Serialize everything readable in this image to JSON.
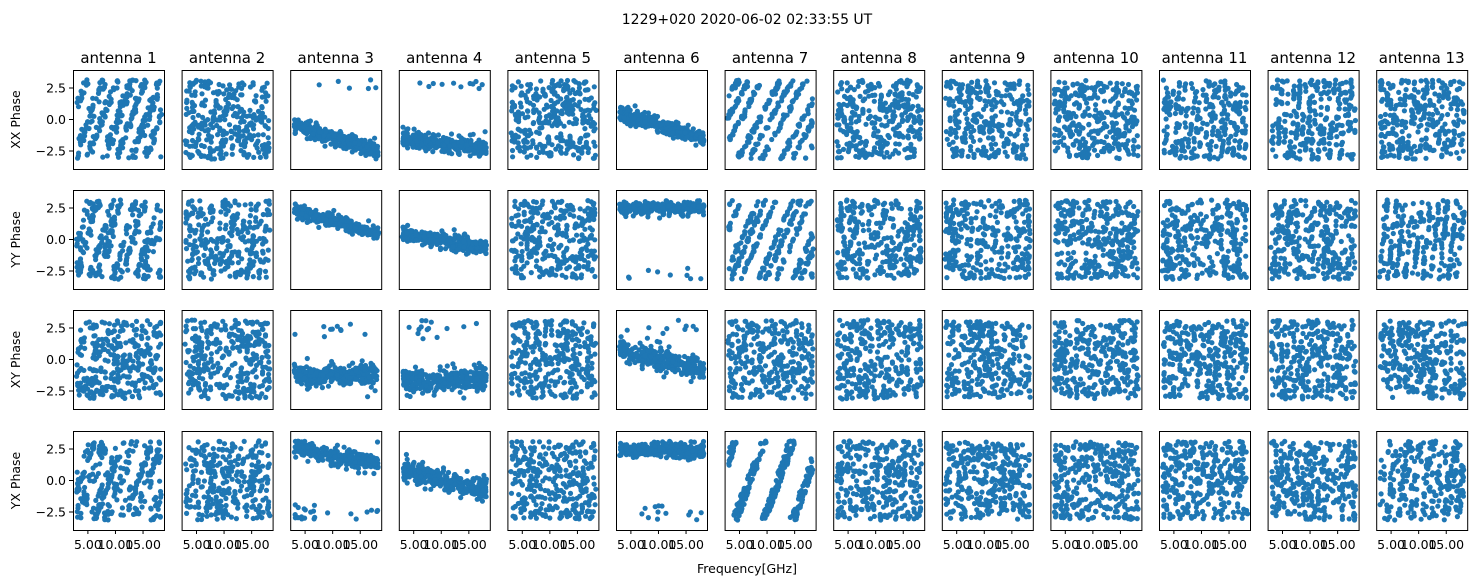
{
  "chart_data": {
    "type": "scatter",
    "title": "1229+020 2020-06-02 02:33:55 UT",
    "xlabel": "Frequency[GHz]",
    "xlim": [
      2.3,
      18.8
    ],
    "ylim": [
      -3.93,
      3.93
    ],
    "xticks": [
      {
        "v": 5,
        "label": "5.00"
      },
      {
        "v": 10,
        "label": "10.00"
      },
      {
        "v": 15,
        "label": "15.00"
      }
    ],
    "yticks": [
      {
        "v": 2.5,
        "label": "2.5"
      },
      {
        "v": 0,
        "label": "0.0"
      },
      {
        "v": -2.5,
        "label": "−2.5"
      }
    ],
    "grid": false,
    "marker_color": "#1f77b4",
    "columns": [
      "antenna 1",
      "antenna 2",
      "antenna 3",
      "antenna 4",
      "antenna 5",
      "antenna 6",
      "antenna 7",
      "antenna 8",
      "antenna 9",
      "antenna 10",
      "antenna 11",
      "antenna 12",
      "antenna 13"
    ],
    "rows": [
      {
        "ylabel": "XX Phase",
        "panels": [
          {
            "mode": "wrap",
            "slope": 1.2,
            "lines": 8
          },
          {
            "mode": "wrap",
            "slope": 3,
            "lines": 10
          },
          {
            "mode": "linear",
            "a": -0.3,
            "b": -0.14,
            "noise": 0.3,
            "outlier": 2.8
          },
          {
            "mode": "linear",
            "a": -1.5,
            "b": -0.05,
            "noise": 0.35,
            "outlier": 2.8
          },
          {
            "mode": "random"
          },
          {
            "mode": "linear",
            "a": 0.6,
            "b": -0.13,
            "noise": 0.3
          },
          {
            "mode": "wrap",
            "slope": 0.8,
            "lines": 3
          },
          {
            "mode": "wrap",
            "slope": 5,
            "lines": 12
          },
          {
            "mode": "wrap",
            "slope": 4,
            "lines": 10
          },
          {
            "mode": "random"
          },
          {
            "mode": "wrap",
            "slope": 3,
            "lines": 9
          },
          {
            "mode": "wrap",
            "slope": 6,
            "lines": 12
          },
          {
            "mode": "wrap",
            "slope": 4,
            "lines": 10
          }
        ]
      },
      {
        "ylabel": "YY Phase",
        "panels": [
          {
            "mode": "wrap",
            "slope": 1.5,
            "lines": 8
          },
          {
            "mode": "wrap",
            "slope": 3,
            "lines": 10
          },
          {
            "mode": "linear",
            "a": 2.4,
            "b": -0.12,
            "noise": 0.25
          },
          {
            "mode": "linear",
            "a": 0.5,
            "b": -0.07,
            "noise": 0.3
          },
          {
            "mode": "random"
          },
          {
            "mode": "linear",
            "a": 2.5,
            "b": 0,
            "noise": 0.25,
            "outlier": -3.0
          },
          {
            "mode": "wrap",
            "slope": 1,
            "lines": 3
          },
          {
            "mode": "wrap",
            "slope": -5,
            "lines": 12
          },
          {
            "mode": "wrap",
            "slope": 3,
            "lines": 10
          },
          {
            "mode": "random"
          },
          {
            "mode": "wrap",
            "slope": -2.5,
            "lines": 9
          },
          {
            "mode": "wrap",
            "slope": -7,
            "lines": 12
          },
          {
            "mode": "wrap",
            "slope": 4,
            "lines": 10
          }
        ]
      },
      {
        "ylabel": "XY Phase",
        "panels": [
          {
            "mode": "random"
          },
          {
            "mode": "wrap",
            "slope": 5,
            "lines": 12
          },
          {
            "mode": "linear",
            "a": -1.2,
            "b": 0,
            "noise": 0.4,
            "outlier": 2.5
          },
          {
            "mode": "linear",
            "a": -1.8,
            "b": 0.02,
            "noise": 0.5,
            "outlier": 2.5
          },
          {
            "mode": "random"
          },
          {
            "mode": "linear",
            "a": 0.8,
            "b": -0.1,
            "noise": 0.45,
            "outlier": 2.5
          },
          {
            "mode": "random"
          },
          {
            "mode": "wrap",
            "slope": -5,
            "lines": 12
          },
          {
            "mode": "random"
          },
          {
            "mode": "random"
          },
          {
            "mode": "random"
          },
          {
            "mode": "wrap",
            "slope": -6,
            "lines": 12
          },
          {
            "mode": "random"
          }
        ]
      },
      {
        "ylabel": "YX Phase",
        "panels": [
          {
            "mode": "wrap",
            "slope": 1.2,
            "lines": 8
          },
          {
            "mode": "wrap",
            "slope": 4,
            "lines": 10
          },
          {
            "mode": "linear",
            "a": 2.7,
            "b": -0.09,
            "noise": 0.35,
            "outlier": -2.5
          },
          {
            "mode": "linear",
            "a": 0.9,
            "b": -0.11,
            "noise": 0.4
          },
          {
            "mode": "random"
          },
          {
            "mode": "linear",
            "a": 2.4,
            "b": 0,
            "noise": 0.3,
            "outlier": -2.5
          },
          {
            "mode": "wrap",
            "slope": 1.2,
            "lines": 3
          },
          {
            "mode": "wrap",
            "slope": -6,
            "lines": 12
          },
          {
            "mode": "random"
          },
          {
            "mode": "random"
          },
          {
            "mode": "random"
          },
          {
            "mode": "wrap",
            "slope": -7,
            "lines": 12
          },
          {
            "mode": "wrap",
            "slope": 3,
            "lines": 10
          }
        ]
      }
    ]
  }
}
